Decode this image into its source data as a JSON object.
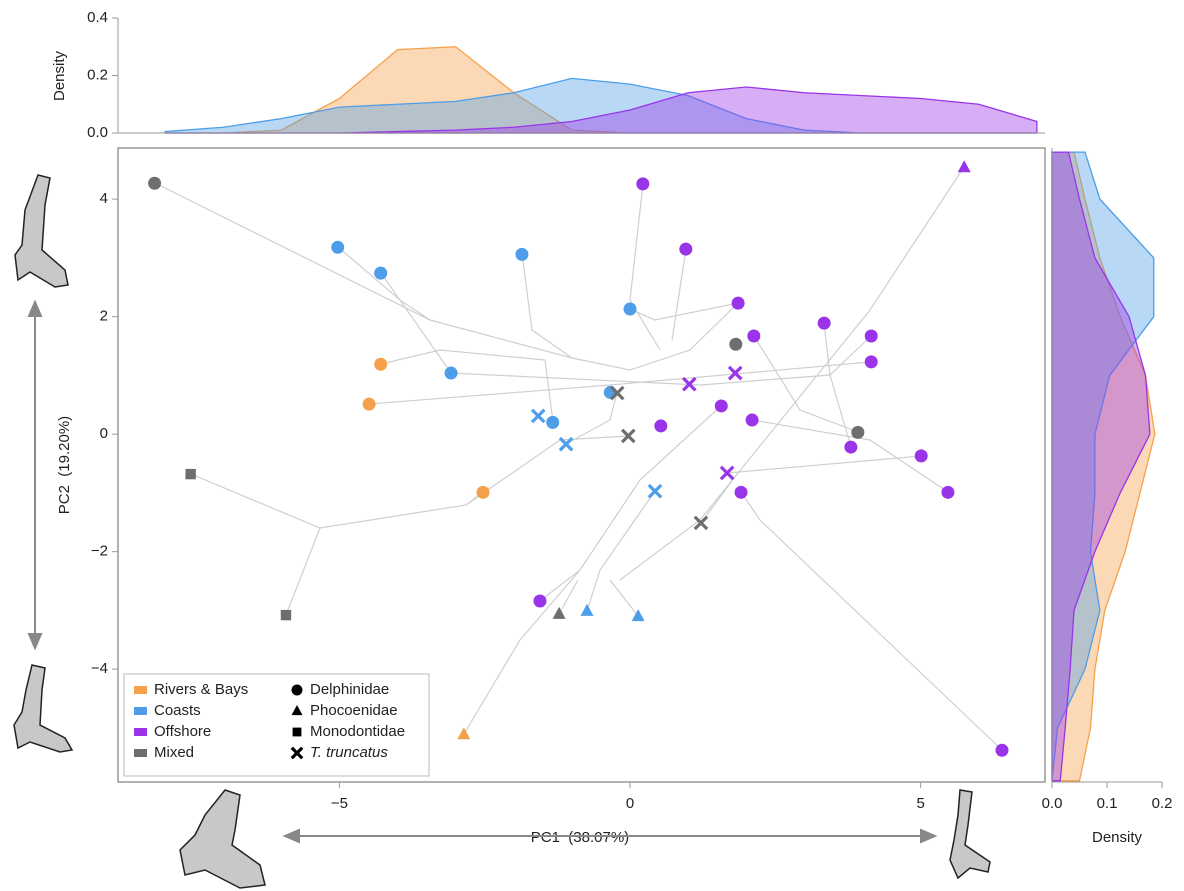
{
  "chart_data": {
    "type": "scatter",
    "x_label": "PC1  (38.07%)",
    "y_label": "PC2  (19.20%)",
    "xlim": [
      -8.81,
      7.14
    ],
    "ylim": [
      -5.92,
      4.87
    ],
    "xticks": [
      {
        "value": -5,
        "label": "−5"
      },
      0,
      5
    ],
    "yticks": [
      {
        "value": -4,
        "label": "−4"
      },
      {
        "value": -2,
        "label": "−2"
      },
      0,
      2,
      4
    ],
    "families": [
      {
        "name": "Delphinidae",
        "marker": "circle"
      },
      {
        "name": "Phocoenidae",
        "marker": "triangle"
      },
      {
        "name": "Monodontidae",
        "marker": "square"
      },
      {
        "name": "T. truncatus",
        "marker": "cross"
      }
    ],
    "series": [
      {
        "name": "Rivers & Bays",
        "color": "#f5a04a",
        "x": [
          -4.29,
          -4.49,
          -2.53,
          -2.86
        ],
        "y": [
          1.19,
          0.51,
          -0.99,
          -5.11
        ],
        "family": [
          "Delphinidae",
          "Delphinidae",
          "Delphinidae",
          "Phocoenidae"
        ]
      },
      {
        "name": "Coasts",
        "color": "#4d9de8",
        "x": [
          -5.03,
          -4.29,
          -1.86,
          0.0,
          -3.08,
          -1.33,
          -0.34,
          -1.58,
          -1.1,
          0.43,
          -0.74,
          0.14
        ],
        "y": [
          3.18,
          2.74,
          3.06,
          2.13,
          1.04,
          0.2,
          0.71,
          0.31,
          -0.17,
          -0.97,
          -3.01,
          -3.1
        ],
        "family": [
          "Delphinidae",
          "Delphinidae",
          "Delphinidae",
          "Delphinidae",
          "Delphinidae",
          "Delphinidae",
          "Delphinidae",
          "T. truncatus",
          "T. truncatus",
          "T. truncatus",
          "Phocoenidae",
          "Phocoenidae"
        ]
      },
      {
        "name": "Offshore",
        "color": "#9a34e8",
        "x": [
          0.22,
          0.96,
          1.86,
          2.13,
          3.34,
          4.15,
          4.15,
          1.57,
          0.53,
          2.1,
          3.8,
          5.01,
          1.91,
          5.47,
          -1.55,
          6.4,
          5.75,
          1.02,
          1.81,
          1.67
        ],
        "y": [
          4.26,
          3.15,
          2.23,
          1.67,
          1.89,
          1.67,
          1.23,
          0.48,
          0.14,
          0.24,
          -0.22,
          -0.37,
          -0.99,
          -0.99,
          -2.84,
          -5.38,
          4.54,
          0.85,
          1.04,
          -0.66
        ],
        "family": [
          "Delphinidae",
          "Delphinidae",
          "Delphinidae",
          "Delphinidae",
          "Delphinidae",
          "Delphinidae",
          "Delphinidae",
          "Delphinidae",
          "Delphinidae",
          "Delphinidae",
          "Delphinidae",
          "Delphinidae",
          "Delphinidae",
          "Delphinidae",
          "Delphinidae",
          "Delphinidae",
          "Phocoenidae",
          "T. truncatus",
          "T. truncatus",
          "T. truncatus"
        ]
      },
      {
        "name": "Mixed",
        "color": "#6e6e6e",
        "x": [
          -8.18,
          1.82,
          3.92,
          -7.56,
          -5.92,
          -1.22,
          -0.22,
          -0.03,
          1.22
        ],
        "y": [
          4.27,
          1.53,
          0.03,
          -0.68,
          -3.08,
          -3.06,
          0.7,
          -0.03,
          -1.51
        ],
        "family": [
          "Delphinidae",
          "Delphinidae",
          "Delphinidae",
          "Monodontidae",
          "Monodontidae",
          "Phocoenidae",
          "T. truncatus",
          "T. truncatus",
          "T. truncatus"
        ]
      }
    ],
    "top_density": {
      "y_label": "Density",
      "ylim": [
        0,
        0.4
      ],
      "yticks": [
        {
          "value": 0,
          "label": "0.0"
        },
        {
          "value": 0.2,
          "label": "0.2"
        },
        {
          "value": 0.4,
          "label": "0.4"
        }
      ],
      "x": [
        -8,
        -7,
        -6,
        -5,
        -4,
        -3,
        -2,
        -1,
        0,
        1,
        2,
        3,
        4,
        5,
        6,
        7
      ],
      "values": [
        [
          0,
          0,
          0.01,
          0.12,
          0.29,
          0.3,
          0.14,
          0.01,
          0,
          0,
          0,
          0,
          0,
          0,
          0,
          0
        ],
        [
          0.005,
          0.02,
          0.05,
          0.09,
          0.1,
          0.11,
          0.14,
          0.19,
          0.17,
          0.13,
          0.05,
          0.01,
          0,
          0,
          0,
          0
        ],
        [
          0,
          0,
          0,
          0,
          0.005,
          0.01,
          0.02,
          0.04,
          0.08,
          0.14,
          0.16,
          0.14,
          0.13,
          0.12,
          0.1,
          0.04
        ]
      ]
    },
    "right_density": {
      "x_label": "Density",
      "xlim": [
        0,
        0.2
      ],
      "xticks": [
        {
          "value": 0,
          "label": "0.0"
        },
        0.1,
        0.2
      ],
      "y": [
        4.8,
        4,
        3,
        2,
        1,
        0,
        -1,
        -2,
        -3,
        -4,
        -5,
        -5.9
      ],
      "values": [
        [
          0.04,
          0.06,
          0.087,
          0.124,
          0.17,
          0.187,
          0.16,
          0.133,
          0.096,
          0.078,
          0.07,
          0.05
        ],
        [
          0.06,
          0.087,
          0.185,
          0.185,
          0.105,
          0.078,
          0.078,
          0.07,
          0.087,
          0.06,
          0.01,
          0
        ],
        [
          0.03,
          0.05,
          0.078,
          0.14,
          0.17,
          0.178,
          0.124,
          0.078,
          0.04,
          0.033,
          0.024,
          0.015
        ]
      ]
    }
  }
}
